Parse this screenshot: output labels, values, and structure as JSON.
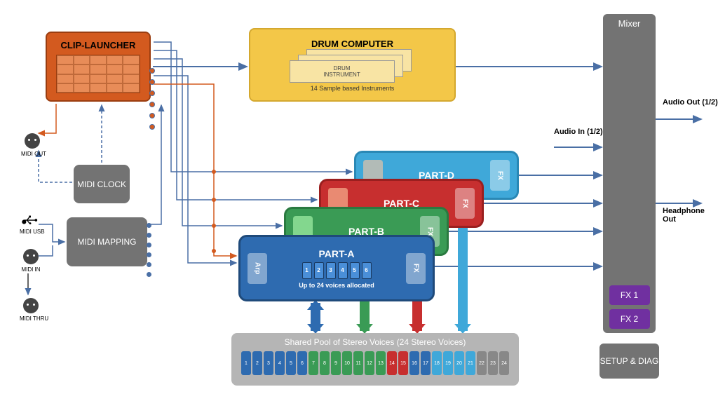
{
  "clip_launcher": {
    "title": "CLIP-LAUNCHER"
  },
  "drum": {
    "title": "DRUM COMPUTER",
    "card": "DRUM INSTRUMENT",
    "sub": "14 Sample based Instruments"
  },
  "midi": {
    "clock": "MIDI CLOCK",
    "mapping": "MIDI MAPPING",
    "out": "MIDI OUT",
    "usb": "MIDI USB",
    "in": "MIDI IN",
    "thru": "MIDI THRU"
  },
  "parts": {
    "a": "PART-A",
    "b": "PART-B",
    "c": "PART-C",
    "d": "PART-D",
    "arp": "Arp",
    "fx": "FX",
    "voices": [
      "1",
      "2",
      "3",
      "4",
      "5",
      "6"
    ],
    "sub": "Up to 24 voices allocated"
  },
  "pool": {
    "title": "Shared Pool of Stereo Voices (24 Stereo Voices)",
    "cells": [
      {
        "n": "1",
        "c": "#2e6bb0"
      },
      {
        "n": "2",
        "c": "#2e6bb0"
      },
      {
        "n": "3",
        "c": "#2e6bb0"
      },
      {
        "n": "4",
        "c": "#2e6bb0"
      },
      {
        "n": "5",
        "c": "#2e6bb0"
      },
      {
        "n": "6",
        "c": "#2e6bb0"
      },
      {
        "n": "7",
        "c": "#3a9b55"
      },
      {
        "n": "8",
        "c": "#3a9b55"
      },
      {
        "n": "9",
        "c": "#3a9b55"
      },
      {
        "n": "10",
        "c": "#3a9b55"
      },
      {
        "n": "11",
        "c": "#3a9b55"
      },
      {
        "n": "12",
        "c": "#3a9b55"
      },
      {
        "n": "13",
        "c": "#3a9b55"
      },
      {
        "n": "14",
        "c": "#c72f2f"
      },
      {
        "n": "15",
        "c": "#c72f2f"
      },
      {
        "n": "16",
        "c": "#2e6bb0"
      },
      {
        "n": "17",
        "c": "#2e6bb0"
      },
      {
        "n": "18",
        "c": "#3fa8d9"
      },
      {
        "n": "19",
        "c": "#3fa8d9"
      },
      {
        "n": "20",
        "c": "#3fa8d9"
      },
      {
        "n": "21",
        "c": "#3fa8d9"
      },
      {
        "n": "22",
        "c": "#888"
      },
      {
        "n": "23",
        "c": "#888"
      },
      {
        "n": "24",
        "c": "#888"
      }
    ]
  },
  "mixer": {
    "title": "Mixer",
    "fx1": "FX 1",
    "fx2": "FX 2"
  },
  "setup": "SETUP & DIAG",
  "io": {
    "audio_in": "Audio In (1/2)",
    "audio_out": "Audio Out (1/2)",
    "hp_out": "Headphone Out"
  },
  "colors": {
    "wire": "#4a6fa5",
    "wire_orange": "#d35a1f",
    "part_a": "#2e6bb0",
    "part_b": "#3a9b55",
    "part_c": "#c72f2f",
    "part_d": "#3fa8d9"
  }
}
